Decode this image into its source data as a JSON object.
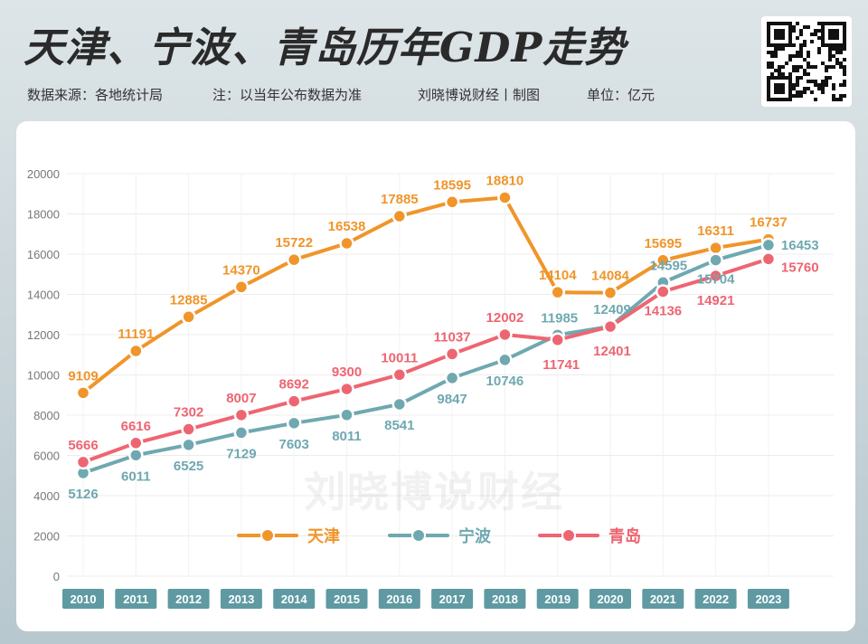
{
  "header": {
    "title": "天津、宁波、青岛历年GDP走势",
    "source": "数据来源：各地统计局",
    "note": "注：以当年公布数据为准",
    "author": "刘晓博说财经丨制图",
    "unit": "单位：亿元"
  },
  "watermark": "刘晓博说财经",
  "qr_icon": "qr-code-icon",
  "chart_data": {
    "type": "line",
    "title": "天津、宁波、青岛历年GDP走势",
    "xlabel": "",
    "ylabel": "",
    "ylim": [
      0,
      20000
    ],
    "yticks": [
      0,
      2000,
      4000,
      6000,
      8000,
      10000,
      12000,
      14000,
      16000,
      18000,
      20000
    ],
    "grid": true,
    "legend_position": "bottom-center",
    "categories": [
      "2010",
      "2011",
      "2012",
      "2013",
      "2014",
      "2015",
      "2016",
      "2017",
      "2018",
      "2019",
      "2020",
      "2021",
      "2022",
      "2023"
    ],
    "series": [
      {
        "name": "天津",
        "color": "#f0952a",
        "values": [
          9109,
          11191,
          12885,
          14370,
          15722,
          16538,
          17885,
          18595,
          18810,
          14104,
          14084,
          15695,
          16311,
          16737
        ]
      },
      {
        "name": "宁波",
        "color": "#6fa8b0",
        "values": [
          5126,
          6011,
          6525,
          7129,
          7603,
          8011,
          8541,
          9847,
          10746,
          11985,
          12409,
          14595,
          15704,
          16453
        ]
      },
      {
        "name": "青岛",
        "color": "#ee6572",
        "values": [
          5666,
          6616,
          7302,
          8007,
          8692,
          9300,
          10011,
          11037,
          12002,
          11741,
          12401,
          14136,
          14921,
          15760
        ]
      }
    ]
  }
}
